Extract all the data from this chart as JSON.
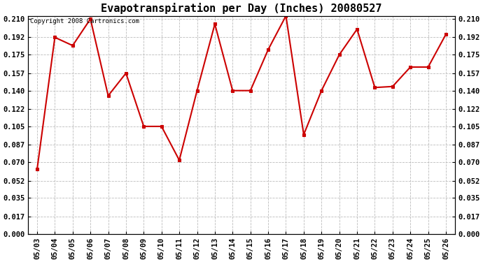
{
  "title": "Evapotranspiration per Day (Inches) 20080527",
  "copyright_text": "Copyright 2008 Cartronics.com",
  "x_labels": [
    "05/03",
    "05/04",
    "05/05",
    "05/06",
    "05/07",
    "05/08",
    "05/09",
    "05/10",
    "05/11",
    "05/12",
    "05/13",
    "05/14",
    "05/15",
    "05/16",
    "05/17",
    "05/18",
    "05/19",
    "05/20",
    "05/21",
    "05/22",
    "05/23",
    "05/24",
    "05/25",
    "05/26"
  ],
  "y_values": [
    0.063,
    0.192,
    0.184,
    0.21,
    0.135,
    0.157,
    0.105,
    0.105,
    0.072,
    0.14,
    0.205,
    0.14,
    0.14,
    0.18,
    0.213,
    0.097,
    0.14,
    0.175,
    0.2,
    0.143,
    0.144,
    0.163,
    0.163,
    0.195
  ],
  "y_ticks": [
    0.0,
    0.017,
    0.035,
    0.052,
    0.07,
    0.087,
    0.105,
    0.122,
    0.14,
    0.157,
    0.175,
    0.192,
    0.21
  ],
  "y_min": 0.0,
  "y_max": 0.21,
  "line_color": "#cc0000",
  "marker_color": "#cc0000",
  "bg_color": "#ffffff",
  "grid_color": "#bbbbbb",
  "title_fontsize": 11,
  "copyright_fontsize": 6.5,
  "tick_fontsize": 7.5
}
